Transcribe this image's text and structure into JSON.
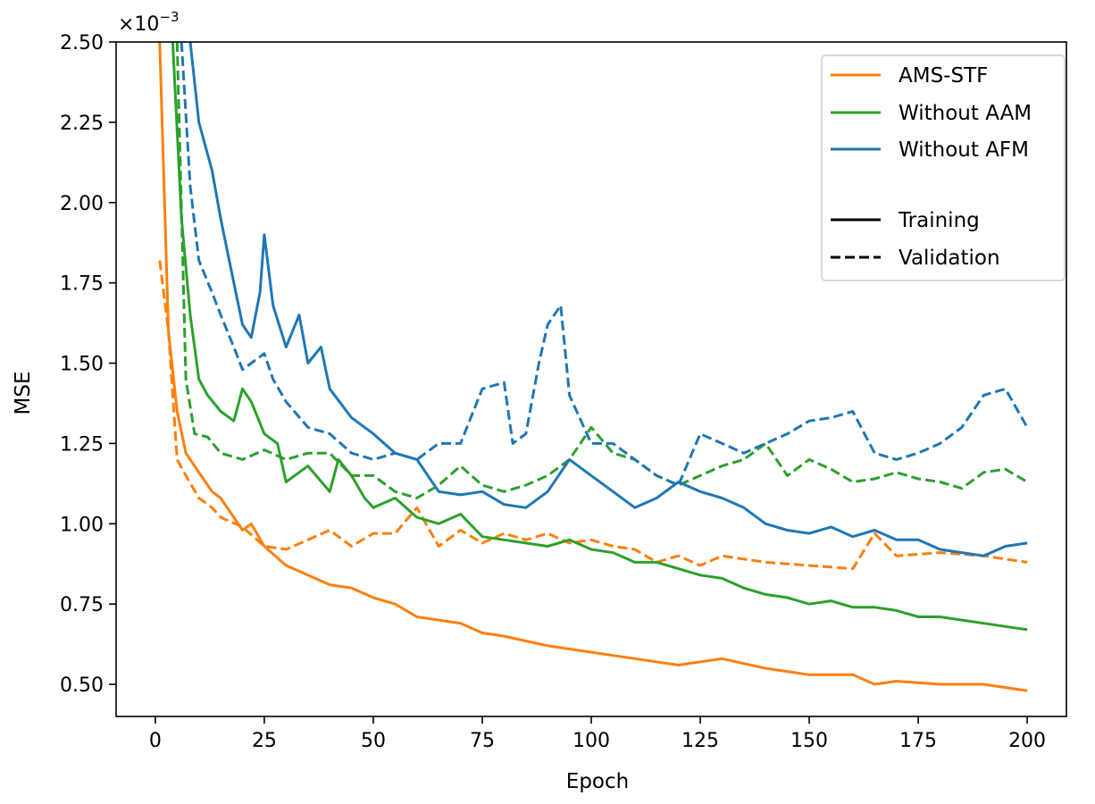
{
  "chart_data": {
    "type": "line",
    "xlabel": "Epoch",
    "ylabel": "MSE",
    "y_multiplier": "×10",
    "y_multiplier_exp": "−3",
    "xlim": [
      -9,
      209
    ],
    "ylim": [
      0.4,
      2.5
    ],
    "xticks": [
      0,
      25,
      50,
      75,
      100,
      125,
      150,
      175,
      200
    ],
    "yticks": [
      0.5,
      0.75,
      1.0,
      1.25,
      1.5,
      1.75,
      2.0,
      2.25,
      2.5
    ],
    "ytick_labels": [
      "0.50",
      "0.75",
      "1.00",
      "1.25",
      "1.50",
      "1.75",
      "2.00",
      "2.25",
      "2.50"
    ],
    "legend": {
      "position": "top-right",
      "model_entries": [
        {
          "label": "AMS-STF",
          "color": "#ff7f0e"
        },
        {
          "label": "Without AAM",
          "color": "#2ca02c"
        },
        {
          "label": "Without AFM",
          "color": "#1f77b4"
        }
      ],
      "style_entries": [
        {
          "label": "Training",
          "style": "solid"
        },
        {
          "label": "Validation",
          "style": "dashed"
        }
      ]
    },
    "series": [
      {
        "name": "AMS-STF Training",
        "color": "#ff7f0e",
        "style": "solid",
        "x": [
          1,
          3,
          5,
          7,
          10,
          13,
          15,
          18,
          20,
          22,
          25,
          30,
          35,
          40,
          45,
          50,
          55,
          60,
          65,
          70,
          75,
          80,
          90,
          100,
          110,
          120,
          125,
          130,
          140,
          150,
          160,
          165,
          170,
          180,
          190,
          200
        ],
        "y": [
          2.5,
          1.6,
          1.35,
          1.22,
          1.16,
          1.1,
          1.08,
          1.02,
          0.98,
          1.0,
          0.93,
          0.87,
          0.84,
          0.81,
          0.8,
          0.77,
          0.75,
          0.71,
          0.7,
          0.69,
          0.66,
          0.65,
          0.62,
          0.6,
          0.58,
          0.56,
          0.57,
          0.58,
          0.55,
          0.53,
          0.53,
          0.5,
          0.51,
          0.5,
          0.5,
          0.48
        ]
      },
      {
        "name": "AMS-STF Validation",
        "color": "#ff7f0e",
        "style": "dashed",
        "x": [
          1,
          3,
          5,
          7,
          10,
          13,
          15,
          20,
          25,
          30,
          35,
          40,
          45,
          50,
          55,
          60,
          65,
          70,
          75,
          80,
          85,
          90,
          95,
          100,
          105,
          110,
          115,
          120,
          125,
          130,
          140,
          150,
          160,
          165,
          170,
          180,
          190,
          200
        ],
        "y": [
          1.82,
          1.6,
          1.2,
          1.15,
          1.08,
          1.05,
          1.02,
          0.99,
          0.93,
          0.92,
          0.95,
          0.98,
          0.93,
          0.97,
          0.97,
          1.05,
          0.93,
          0.98,
          0.94,
          0.97,
          0.95,
          0.97,
          0.94,
          0.95,
          0.93,
          0.92,
          0.88,
          0.9,
          0.87,
          0.9,
          0.88,
          0.87,
          0.86,
          0.97,
          0.9,
          0.91,
          0.9,
          0.88
        ]
      },
      {
        "name": "Without AAM Training",
        "color": "#2ca02c",
        "style": "solid",
        "x": [
          4,
          6,
          8,
          10,
          12,
          15,
          18,
          20,
          22,
          25,
          28,
          30,
          35,
          40,
          42,
          45,
          48,
          50,
          55,
          60,
          65,
          70,
          75,
          80,
          85,
          90,
          95,
          100,
          105,
          110,
          115,
          120,
          125,
          130,
          135,
          140,
          145,
          150,
          155,
          160,
          165,
          170,
          175,
          180,
          185,
          190,
          195,
          200
        ],
        "y": [
          2.5,
          1.95,
          1.65,
          1.45,
          1.4,
          1.35,
          1.32,
          1.42,
          1.38,
          1.28,
          1.25,
          1.13,
          1.18,
          1.1,
          1.2,
          1.15,
          1.08,
          1.05,
          1.08,
          1.02,
          1.0,
          1.03,
          0.96,
          0.95,
          0.94,
          0.93,
          0.95,
          0.92,
          0.91,
          0.88,
          0.88,
          0.86,
          0.84,
          0.83,
          0.8,
          0.78,
          0.77,
          0.75,
          0.76,
          0.74,
          0.74,
          0.73,
          0.71,
          0.71,
          0.7,
          0.69,
          0.68,
          0.67
        ]
      },
      {
        "name": "Without AAM Validation",
        "color": "#2ca02c",
        "style": "dashed",
        "x": [
          5,
          7,
          9,
          12,
          15,
          20,
          25,
          30,
          35,
          40,
          45,
          50,
          55,
          60,
          65,
          70,
          75,
          80,
          85,
          90,
          95,
          100,
          105,
          110,
          115,
          120,
          125,
          130,
          135,
          140,
          145,
          150,
          155,
          160,
          165,
          170,
          175,
          180,
          185,
          190,
          195,
          200
        ],
        "y": [
          2.5,
          1.45,
          1.28,
          1.27,
          1.22,
          1.2,
          1.23,
          1.2,
          1.22,
          1.22,
          1.15,
          1.15,
          1.1,
          1.08,
          1.12,
          1.18,
          1.12,
          1.1,
          1.12,
          1.15,
          1.2,
          1.3,
          1.22,
          1.2,
          1.15,
          1.12,
          1.15,
          1.18,
          1.2,
          1.25,
          1.15,
          1.2,
          1.17,
          1.13,
          1.14,
          1.16,
          1.14,
          1.13,
          1.11,
          1.16,
          1.17,
          1.13
        ]
      },
      {
        "name": "Without AFM Training",
        "color": "#1f77b4",
        "style": "solid",
        "x": [
          8,
          10,
          13,
          15,
          18,
          20,
          22,
          24,
          25,
          27,
          30,
          33,
          35,
          38,
          40,
          45,
          50,
          55,
          60,
          65,
          70,
          75,
          80,
          85,
          90,
          95,
          100,
          105,
          110,
          115,
          120,
          125,
          130,
          135,
          140,
          145,
          150,
          155,
          160,
          165,
          170,
          175,
          180,
          185,
          190,
          195,
          200
        ],
        "y": [
          2.5,
          2.25,
          2.1,
          1.95,
          1.75,
          1.62,
          1.58,
          1.72,
          1.9,
          1.68,
          1.55,
          1.65,
          1.5,
          1.55,
          1.42,
          1.33,
          1.28,
          1.22,
          1.2,
          1.1,
          1.09,
          1.1,
          1.06,
          1.05,
          1.1,
          1.2,
          1.15,
          1.1,
          1.05,
          1.08,
          1.13,
          1.1,
          1.08,
          1.05,
          1.0,
          0.98,
          0.97,
          0.99,
          0.96,
          0.98,
          0.95,
          0.95,
          0.92,
          0.91,
          0.9,
          0.93,
          0.94
        ]
      },
      {
        "name": "Without AFM Validation",
        "color": "#1f77b4",
        "style": "dashed",
        "x": [
          6,
          8,
          10,
          13,
          15,
          18,
          20,
          22,
          25,
          27,
          30,
          35,
          40,
          45,
          50,
          55,
          60,
          65,
          70,
          75,
          80,
          82,
          85,
          88,
          90,
          93,
          95,
          100,
          105,
          110,
          115,
          120,
          125,
          130,
          135,
          140,
          145,
          150,
          155,
          160,
          165,
          170,
          175,
          180,
          185,
          190,
          195,
          200
        ],
        "y": [
          2.5,
          2.05,
          1.82,
          1.72,
          1.65,
          1.55,
          1.48,
          1.5,
          1.53,
          1.45,
          1.38,
          1.3,
          1.28,
          1.22,
          1.2,
          1.22,
          1.2,
          1.25,
          1.25,
          1.42,
          1.44,
          1.25,
          1.28,
          1.5,
          1.62,
          1.68,
          1.4,
          1.25,
          1.25,
          1.2,
          1.15,
          1.12,
          1.28,
          1.25,
          1.22,
          1.25,
          1.28,
          1.32,
          1.33,
          1.35,
          1.22,
          1.2,
          1.22,
          1.25,
          1.3,
          1.4,
          1.42,
          1.3
        ]
      }
    ]
  }
}
